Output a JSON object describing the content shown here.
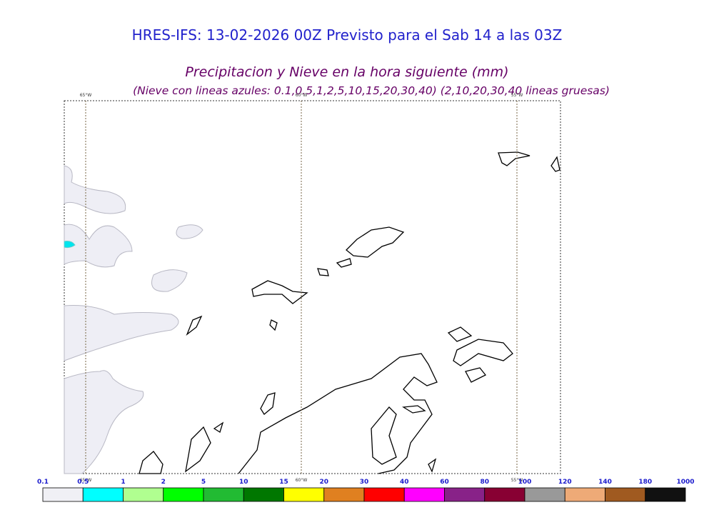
{
  "header": {
    "title": "HRES-IFS: 13-02-2026 00Z Previsto para el Sab 14 a las 03Z",
    "subtitle": "Precipitacion y Nieve en la hora siguiente (mm)",
    "note": "(Nieve con lineas azules: 0.1,0.5,1,2,5,10,15,20,30,40)  (2,10,20,30,40 lineas gruesas)"
  },
  "map": {
    "meridians": [
      "65°W",
      "60°W",
      "55°W"
    ]
  },
  "colorbar": {
    "labels": [
      "0.1",
      "0.5",
      "1",
      "2",
      "5",
      "10",
      "15",
      "20",
      "30",
      "40",
      "60",
      "80",
      "100",
      "120",
      "140",
      "180",
      "1000"
    ],
    "colors": [
      "#f0f0f5",
      "#00ffff",
      "#b0ff90",
      "#00ff00",
      "#22bb33",
      "#007700",
      "#ffff00",
      "#e08020",
      "#ff0000",
      "#ff00ff",
      "#882288",
      "#880033",
      "#999999",
      "#eeaa77",
      "#a05a20",
      "#111111"
    ]
  }
}
